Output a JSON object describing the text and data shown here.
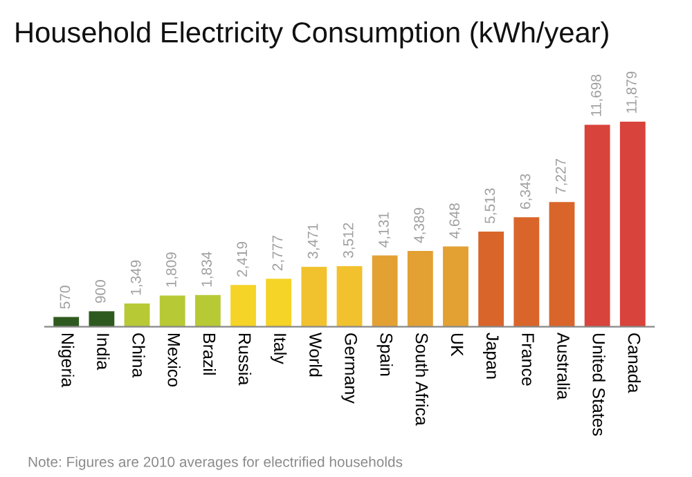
{
  "chart_data": {
    "type": "bar",
    "title": "Household Electricity Consumption (kWh/year)",
    "categories": [
      "Nigeria",
      "India",
      "China",
      "Mexico",
      "Brazil",
      "Russia",
      "Italy",
      "World",
      "Germany",
      "Spain",
      "South Africa",
      "UK",
      "Japan",
      "France",
      "Australia",
      "United States",
      "Canada"
    ],
    "values": [
      570,
      900,
      1349,
      1809,
      1834,
      2419,
      2777,
      3471,
      3512,
      4131,
      4389,
      4648,
      5513,
      6343,
      7227,
      11698,
      11879
    ],
    "value_labels": [
      "570",
      "900",
      "1,349",
      "1,809",
      "1,834",
      "2,419",
      "2,777",
      "3,471",
      "3,512",
      "4,131",
      "4,389",
      "4,648",
      "5,513",
      "6,343",
      "7,227",
      "11,698",
      "11,879"
    ],
    "colors": [
      "#2f5a1f",
      "#2f5a1f",
      "#b8c936",
      "#b8c936",
      "#b8c936",
      "#f5d327",
      "#f5d327",
      "#f2c12e",
      "#f2c12e",
      "#e3a033",
      "#e3a033",
      "#e3a033",
      "#d9652a",
      "#d9652a",
      "#d9652a",
      "#d8433b",
      "#d8433b"
    ],
    "annotations": [
      "Note: Figures are 2010 averages for electrified households"
    ],
    "grid": false
  }
}
